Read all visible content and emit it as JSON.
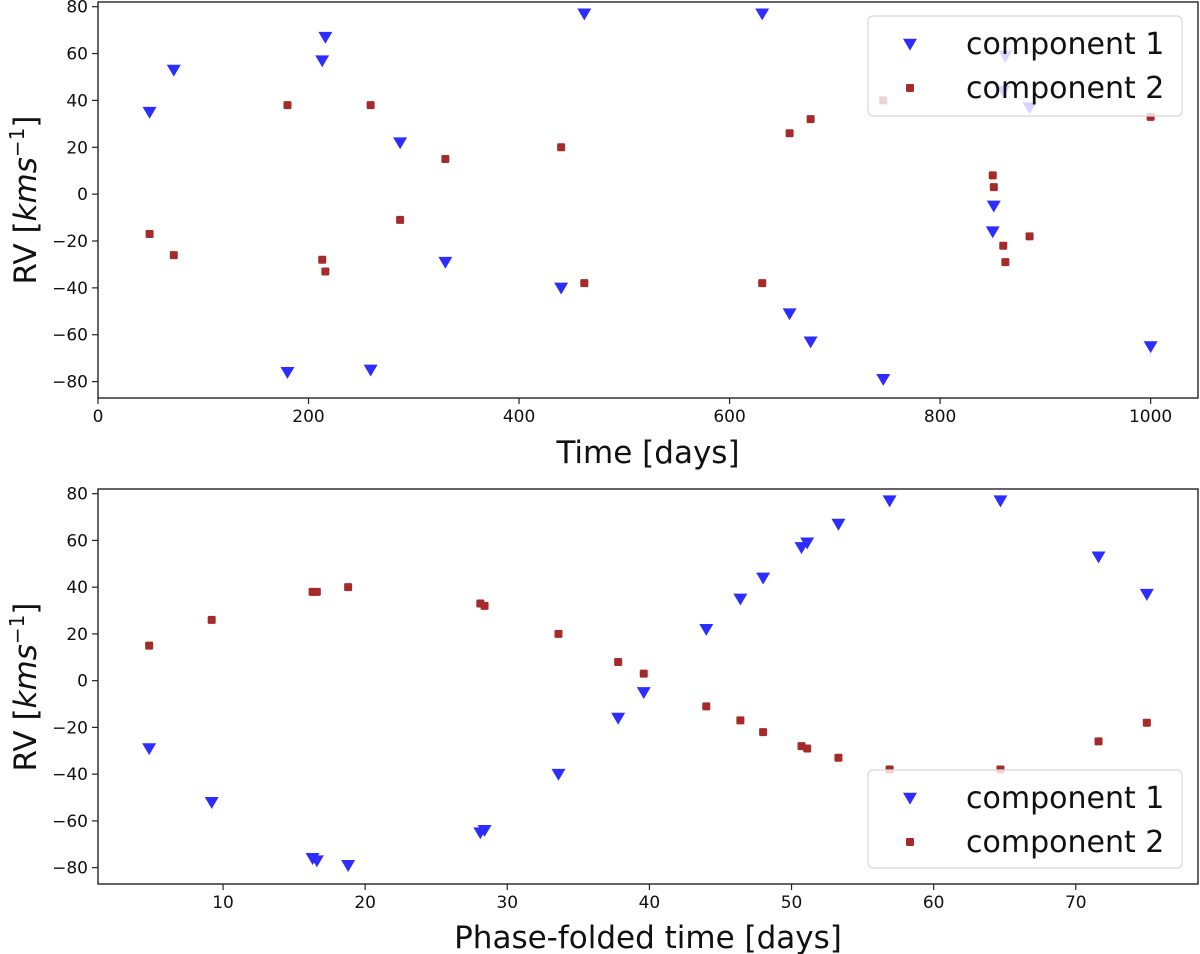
{
  "colors": {
    "component1": "#2d2dff",
    "component2": "#a52a2a",
    "axes": "#222222",
    "legend_border": "#d8d8d8"
  },
  "chart_data": [
    {
      "type": "scatter",
      "xlabel": "Time [days]",
      "ylabel_base": "RV [",
      "ylabel_unit": "kms",
      "ylabel_exp": "−1",
      "ylabel_close": "]",
      "xlim": [
        0,
        1045
      ],
      "ylim": [
        -87,
        82
      ],
      "xticks": [
        {
          "value": 0,
          "label": "0"
        },
        {
          "value": 200,
          "label": "200"
        },
        {
          "value": 400,
          "label": "400"
        },
        {
          "value": 600,
          "label": "600"
        },
        {
          "value": 800,
          "label": "800"
        },
        {
          "value": 1000,
          "label": "1000"
        }
      ],
      "yticks": [
        {
          "value": -80,
          "label": "−80"
        },
        {
          "value": -60,
          "label": "−60"
        },
        {
          "value": -40,
          "label": "−40"
        },
        {
          "value": -20,
          "label": "−20"
        },
        {
          "value": 0,
          "label": "0"
        },
        {
          "value": 20,
          "label": "20"
        },
        {
          "value": 40,
          "label": "40"
        },
        {
          "value": 60,
          "label": "60"
        },
        {
          "value": 80,
          "label": "80"
        }
      ],
      "legend_position": "top-right",
      "series": [
        {
          "name": "component 1",
          "marker": "triangle-down",
          "color": "#2d2dff",
          "points": [
            [
              49,
              35
            ],
            [
              72,
              53
            ],
            [
              180,
              -76
            ],
            [
              213,
              57
            ],
            [
              216,
              67
            ],
            [
              259,
              -75
            ],
            [
              287,
              22
            ],
            [
              330,
              -29
            ],
            [
              440,
              -40
            ],
            [
              462,
              77
            ],
            [
              631,
              77
            ],
            [
              657,
              -51
            ],
            [
              677,
              -63
            ],
            [
              746,
              -79
            ],
            [
              850,
              -16
            ],
            [
              851,
              -5
            ],
            [
              860,
              44
            ],
            [
              862,
              59
            ],
            [
              885,
              37
            ],
            [
              1000,
              -65
            ]
          ]
        },
        {
          "name": "component 2",
          "marker": "square",
          "color": "#a52a2a",
          "points": [
            [
              49,
              -17
            ],
            [
              72,
              -26
            ],
            [
              180,
              38
            ],
            [
              213,
              -28
            ],
            [
              216,
              -33
            ],
            [
              259,
              38
            ],
            [
              287,
              -11
            ],
            [
              330,
              15
            ],
            [
              440,
              20
            ],
            [
              462,
              -38
            ],
            [
              631,
              -38
            ],
            [
              657,
              26
            ],
            [
              677,
              32
            ],
            [
              746,
              40
            ],
            [
              850,
              8
            ],
            [
              851,
              3
            ],
            [
              860,
              -22
            ],
            [
              862,
              -29
            ],
            [
              885,
              -18
            ],
            [
              1000,
              33
            ]
          ]
        }
      ]
    },
    {
      "type": "scatter",
      "xlabel": "Phase-folded time [days]",
      "ylabel_base": "RV [",
      "ylabel_unit": "kms",
      "ylabel_exp": "−1",
      "ylabel_close": "]",
      "xlim": [
        1.2,
        78.6
      ],
      "ylim": [
        -87,
        82
      ],
      "xticks": [
        {
          "value": 10,
          "label": "10"
        },
        {
          "value": 20,
          "label": "20"
        },
        {
          "value": 30,
          "label": "30"
        },
        {
          "value": 40,
          "label": "40"
        },
        {
          "value": 50,
          "label": "50"
        },
        {
          "value": 60,
          "label": "60"
        },
        {
          "value": 70,
          "label": "70"
        }
      ],
      "yticks": [
        {
          "value": -80,
          "label": "−80"
        },
        {
          "value": -60,
          "label": "−60"
        },
        {
          "value": -40,
          "label": "−40"
        },
        {
          "value": -20,
          "label": "−20"
        },
        {
          "value": 0,
          "label": "0"
        },
        {
          "value": 20,
          "label": "20"
        },
        {
          "value": 40,
          "label": "40"
        },
        {
          "value": 60,
          "label": "60"
        },
        {
          "value": 80,
          "label": "80"
        }
      ],
      "legend_position": "bottom-right",
      "series": [
        {
          "name": "component 1",
          "marker": "triangle-down",
          "color": "#2d2dff",
          "points": [
            [
              4.8,
              -29
            ],
            [
              9.2,
              -52
            ],
            [
              16.3,
              -76
            ],
            [
              16.6,
              -77
            ],
            [
              18.8,
              -79
            ],
            [
              28.1,
              -65
            ],
            [
              28.4,
              -64
            ],
            [
              33.6,
              -40
            ],
            [
              37.8,
              -16
            ],
            [
              39.6,
              -5
            ],
            [
              44.0,
              22
            ],
            [
              46.4,
              35
            ],
            [
              48.0,
              44
            ],
            [
              50.7,
              57
            ],
            [
              51.1,
              59
            ],
            [
              53.3,
              67
            ],
            [
              56.9,
              77
            ],
            [
              64.7,
              77
            ],
            [
              71.6,
              53
            ],
            [
              75.0,
              37
            ]
          ]
        },
        {
          "name": "component 2",
          "marker": "square",
          "color": "#a52a2a",
          "points": [
            [
              4.8,
              15
            ],
            [
              9.2,
              26
            ],
            [
              16.3,
              38
            ],
            [
              16.6,
              38
            ],
            [
              18.8,
              40
            ],
            [
              28.1,
              33
            ],
            [
              28.4,
              32
            ],
            [
              33.6,
              20
            ],
            [
              37.8,
              8
            ],
            [
              39.6,
              3
            ],
            [
              44.0,
              -11
            ],
            [
              46.4,
              -17
            ],
            [
              48.0,
              -22
            ],
            [
              50.7,
              -28
            ],
            [
              51.1,
              -29
            ],
            [
              53.3,
              -33
            ],
            [
              56.9,
              -38
            ],
            [
              64.7,
              -38
            ],
            [
              71.6,
              -26
            ],
            [
              75.0,
              -18
            ]
          ]
        }
      ]
    }
  ]
}
